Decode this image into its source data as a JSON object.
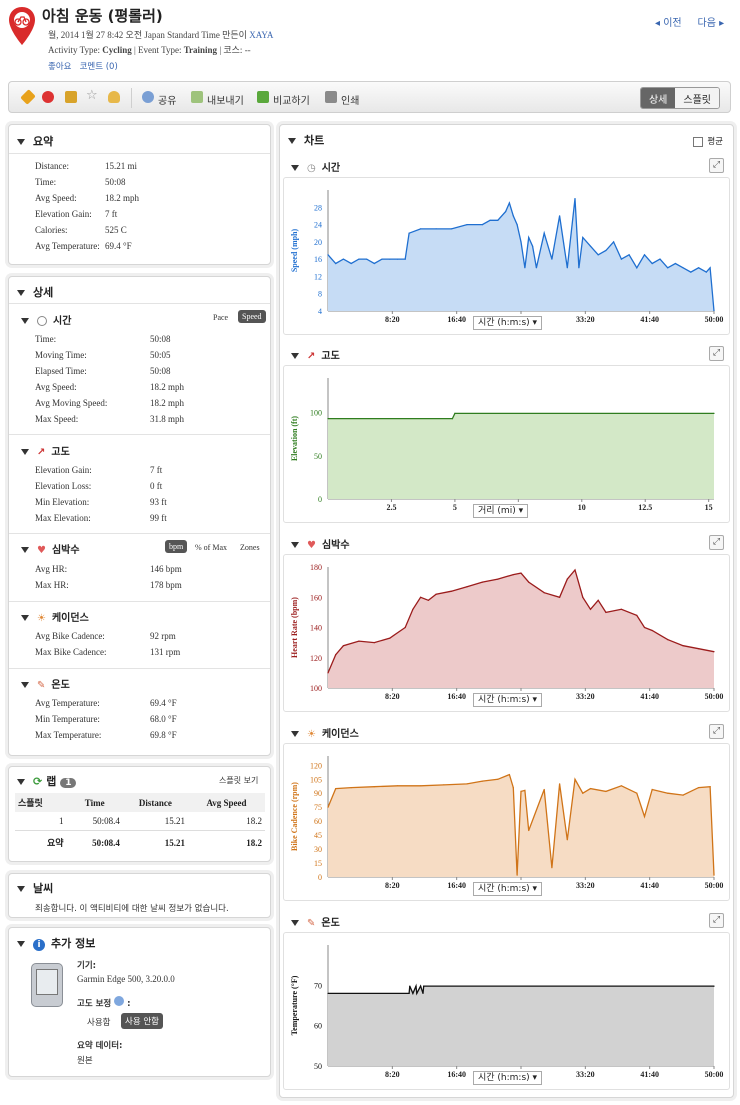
{
  "header": {
    "title": "아침 운동 (평롤러)",
    "meta_line1_prefix": "월, 2014 1월 27 8:42 오전 Japan Standard Time 만든이",
    "meta_owner": "XAYA",
    "activity_type_label": "Activity Type:",
    "activity_type": "Cycling",
    "event_type_label": "| Event Type:",
    "event_type": "Training",
    "course_label": "| 코스:",
    "course": "--",
    "like": "좋아요",
    "comment": "코멘트 (0)",
    "prev": "이전",
    "next": "다음"
  },
  "toolbar": {
    "share": "공유",
    "export": "내보내기",
    "compare": "비교하기",
    "print": "인쇄",
    "view_detail": "상세",
    "view_split": "스플릿"
  },
  "summary": {
    "title": "요약",
    "rows": [
      [
        "Distance:",
        "15.21 mi"
      ],
      [
        "Time:",
        "50:08"
      ],
      [
        "Avg Speed:",
        "18.2 mph"
      ],
      [
        "Elevation Gain:",
        "7 ft"
      ],
      [
        "Calories:",
        "525 C"
      ],
      [
        "Avg Temperature:",
        "69.4 °F"
      ]
    ]
  },
  "detail": {
    "title": "상세",
    "time": {
      "title": "시간",
      "pace": "Pace",
      "speed": "Speed",
      "rows": [
        [
          "Time:",
          "50:08"
        ],
        [
          "Moving Time:",
          "50:05"
        ],
        [
          "Elapsed Time:",
          "50:08"
        ],
        [
          "Avg Speed:",
          "18.2 mph"
        ],
        [
          "Avg Moving Speed:",
          "18.2 mph"
        ],
        [
          "Max Speed:",
          "31.8 mph"
        ]
      ]
    },
    "elevation": {
      "title": "고도",
      "rows": [
        [
          "Elevation Gain:",
          "7 ft"
        ],
        [
          "Elevation Loss:",
          "0 ft"
        ],
        [
          "Min Elevation:",
          "93 ft"
        ],
        [
          "Max Elevation:",
          "99 ft"
        ]
      ]
    },
    "heart": {
      "title": "심박수",
      "bpm": "bpm",
      "pct": "% of Max",
      "zones": "Zones",
      "rows": [
        [
          "Avg HR:",
          "146 bpm"
        ],
        [
          "Max HR:",
          "178 bpm"
        ]
      ]
    },
    "cadence": {
      "title": "케이던스",
      "rows": [
        [
          "Avg Bike Cadence:",
          "92 rpm"
        ],
        [
          "Max Bike Cadence:",
          "131 rpm"
        ]
      ]
    },
    "temp": {
      "title": "온도",
      "rows": [
        [
          "Avg Temperature:",
          "69.4 °F"
        ],
        [
          "Min Temperature:",
          "68.0 °F"
        ],
        [
          "Max Temperature:",
          "69.8 °F"
        ]
      ]
    }
  },
  "laps": {
    "title": "랩",
    "count": "1",
    "split_view": "스플릿 보기",
    "headers": [
      "스플릿",
      "Time",
      "Distance",
      "Avg Speed"
    ],
    "rows": [
      [
        "1",
        "50:08.4",
        "15.21",
        "18.2"
      ]
    ],
    "summary": [
      "요약",
      "50:08.4",
      "15.21",
      "18.2"
    ]
  },
  "weather": {
    "title": "날씨",
    "message": "죄송합니다. 이 액티비티에 대한 날씨 정보가 없습니다."
  },
  "extra": {
    "title": "추가 정보",
    "device_label": "기기:",
    "device": "Garmin Edge 500, 3.20.0.0",
    "elev_corr_label": "고도 보정",
    "use": "사용함",
    "not_use": "사용 안함",
    "summary_data_label": "요약 데이터:",
    "summary_data": "원본"
  },
  "charts_header": {
    "title": "차트",
    "avg": "평균"
  },
  "chart_data": [
    {
      "type": "area",
      "title": "시간",
      "ylabel": "Speed (mph)",
      "xselect": "시간 (h:m:s)",
      "color": "#1f6fd0",
      "fill": "#c6dcf5",
      "ylim": [
        4,
        32
      ],
      "yticks": [
        4,
        8,
        12,
        16,
        20,
        24,
        28
      ],
      "xlim": [
        0,
        50
      ],
      "xticks": [
        "8:20",
        "16:40",
        "25:00",
        "33:20",
        "41:40",
        "50:00"
      ],
      "x": [
        0,
        1,
        2,
        3,
        4,
        5,
        6,
        7,
        8,
        9,
        10,
        10.5,
        12,
        14,
        16,
        18,
        20,
        21,
        22,
        23,
        23.5,
        24,
        24.5,
        25,
        25.5,
        26,
        26.5,
        27,
        28,
        29,
        30,
        31,
        32,
        32.5,
        33,
        34,
        35,
        36,
        37,
        38,
        39,
        40,
        41,
        42,
        43,
        44,
        45,
        46,
        47,
        48,
        49,
        49.5,
        50
      ],
      "y": [
        17,
        15,
        16,
        15,
        16,
        16,
        15,
        16,
        16,
        16,
        16,
        22,
        23,
        23,
        23,
        24,
        24,
        25,
        25,
        27,
        29,
        26,
        24,
        20,
        14,
        21,
        19,
        14,
        22,
        16,
        26,
        14,
        30,
        14,
        21,
        19,
        17,
        18,
        20,
        16,
        17,
        14,
        17,
        15,
        16,
        14,
        15,
        14,
        13,
        14,
        13,
        14,
        4
      ]
    },
    {
      "type": "area",
      "title": "고도",
      "ylabel": "Elevation (ft)",
      "xselect": "거리 (mi)",
      "color": "#2f7d1f",
      "fill": "#d3e8c7",
      "ylim": [
        0,
        140
      ],
      "yticks": [
        0,
        50,
        100
      ],
      "xlim": [
        0,
        15.21
      ],
      "xticks": [
        "2.5",
        "5",
        "7.5",
        "10",
        "12.5",
        "15"
      ],
      "x": [
        0,
        4.9,
        5.0,
        15.21
      ],
      "y": [
        93,
        93,
        99,
        99
      ]
    },
    {
      "type": "area",
      "title": "심박수",
      "ylabel": "Heart Rate (bpm)",
      "xselect": "시간 (h:m:s)",
      "color": "#9b1c1c",
      "fill": "#edcaca",
      "ylim": [
        100,
        180
      ],
      "yticks": [
        100,
        120,
        140,
        160,
        180
      ],
      "xlim": [
        0,
        50
      ],
      "xticks": [
        "8:20",
        "16:40",
        "25:00",
        "33:20",
        "41:40",
        "50:00"
      ],
      "x": [
        0,
        1,
        2,
        4,
        6,
        8,
        10,
        11,
        12,
        13,
        14,
        16,
        18,
        20,
        22,
        24,
        25,
        26,
        28,
        30,
        31,
        32,
        33,
        34,
        35,
        36,
        38,
        40,
        41,
        42,
        44,
        46,
        48,
        50
      ],
      "y": [
        110,
        122,
        128,
        131,
        130,
        133,
        140,
        152,
        160,
        158,
        162,
        164,
        167,
        170,
        172,
        175,
        176,
        170,
        163,
        160,
        172,
        178,
        160,
        152,
        158,
        150,
        152,
        148,
        140,
        138,
        132,
        128,
        126,
        124
      ]
    },
    {
      "type": "area",
      "title": "케이던스",
      "ylabel": "Bike Cadence (rpm)",
      "xselect": "시간 (h:m:s)",
      "color": "#d07418",
      "fill": "#f6dcc4",
      "ylim": [
        0,
        130
      ],
      "yticks": [
        0,
        15,
        30,
        45,
        60,
        75,
        90,
        105,
        120
      ],
      "xlim": [
        0,
        50
      ],
      "xticks": [
        "8:20",
        "16:40",
        "25:00",
        "33:20",
        "41:40",
        "50:00"
      ],
      "x": [
        0,
        1,
        3,
        6,
        9,
        12,
        15,
        18,
        20,
        22,
        23.5,
        24,
        24.5,
        25,
        25.5,
        26,
        28,
        29,
        30,
        31,
        32,
        33,
        34,
        36,
        38,
        40,
        41,
        42,
        44,
        46,
        48,
        49.5,
        50
      ],
      "y": [
        75,
        95,
        96,
        97,
        98,
        98,
        99,
        100,
        103,
        105,
        110,
        96,
        2,
        92,
        93,
        50,
        94,
        10,
        100,
        40,
        105,
        90,
        95,
        92,
        98,
        90,
        65,
        94,
        90,
        88,
        96,
        97,
        2
      ]
    },
    {
      "type": "area",
      "title": "온도",
      "ylabel": "Temperature (°F)",
      "xselect": "시간 (h:m:s)",
      "color": "#111111",
      "fill": "#d2d2d2",
      "ylim": [
        50,
        80
      ],
      "yticks": [
        50,
        60,
        70
      ],
      "xlim": [
        0,
        50
      ],
      "xticks": [
        "8:20",
        "16:40",
        "25:00",
        "33:20",
        "41:40",
        "50:00"
      ],
      "x": [
        0,
        10.5,
        10.6,
        11,
        11.4,
        11.5,
        12,
        12.3,
        12.4,
        50
      ],
      "y": [
        68,
        68,
        69.8,
        68,
        69.8,
        68,
        69.8,
        68,
        69.8,
        69.8
      ]
    }
  ]
}
